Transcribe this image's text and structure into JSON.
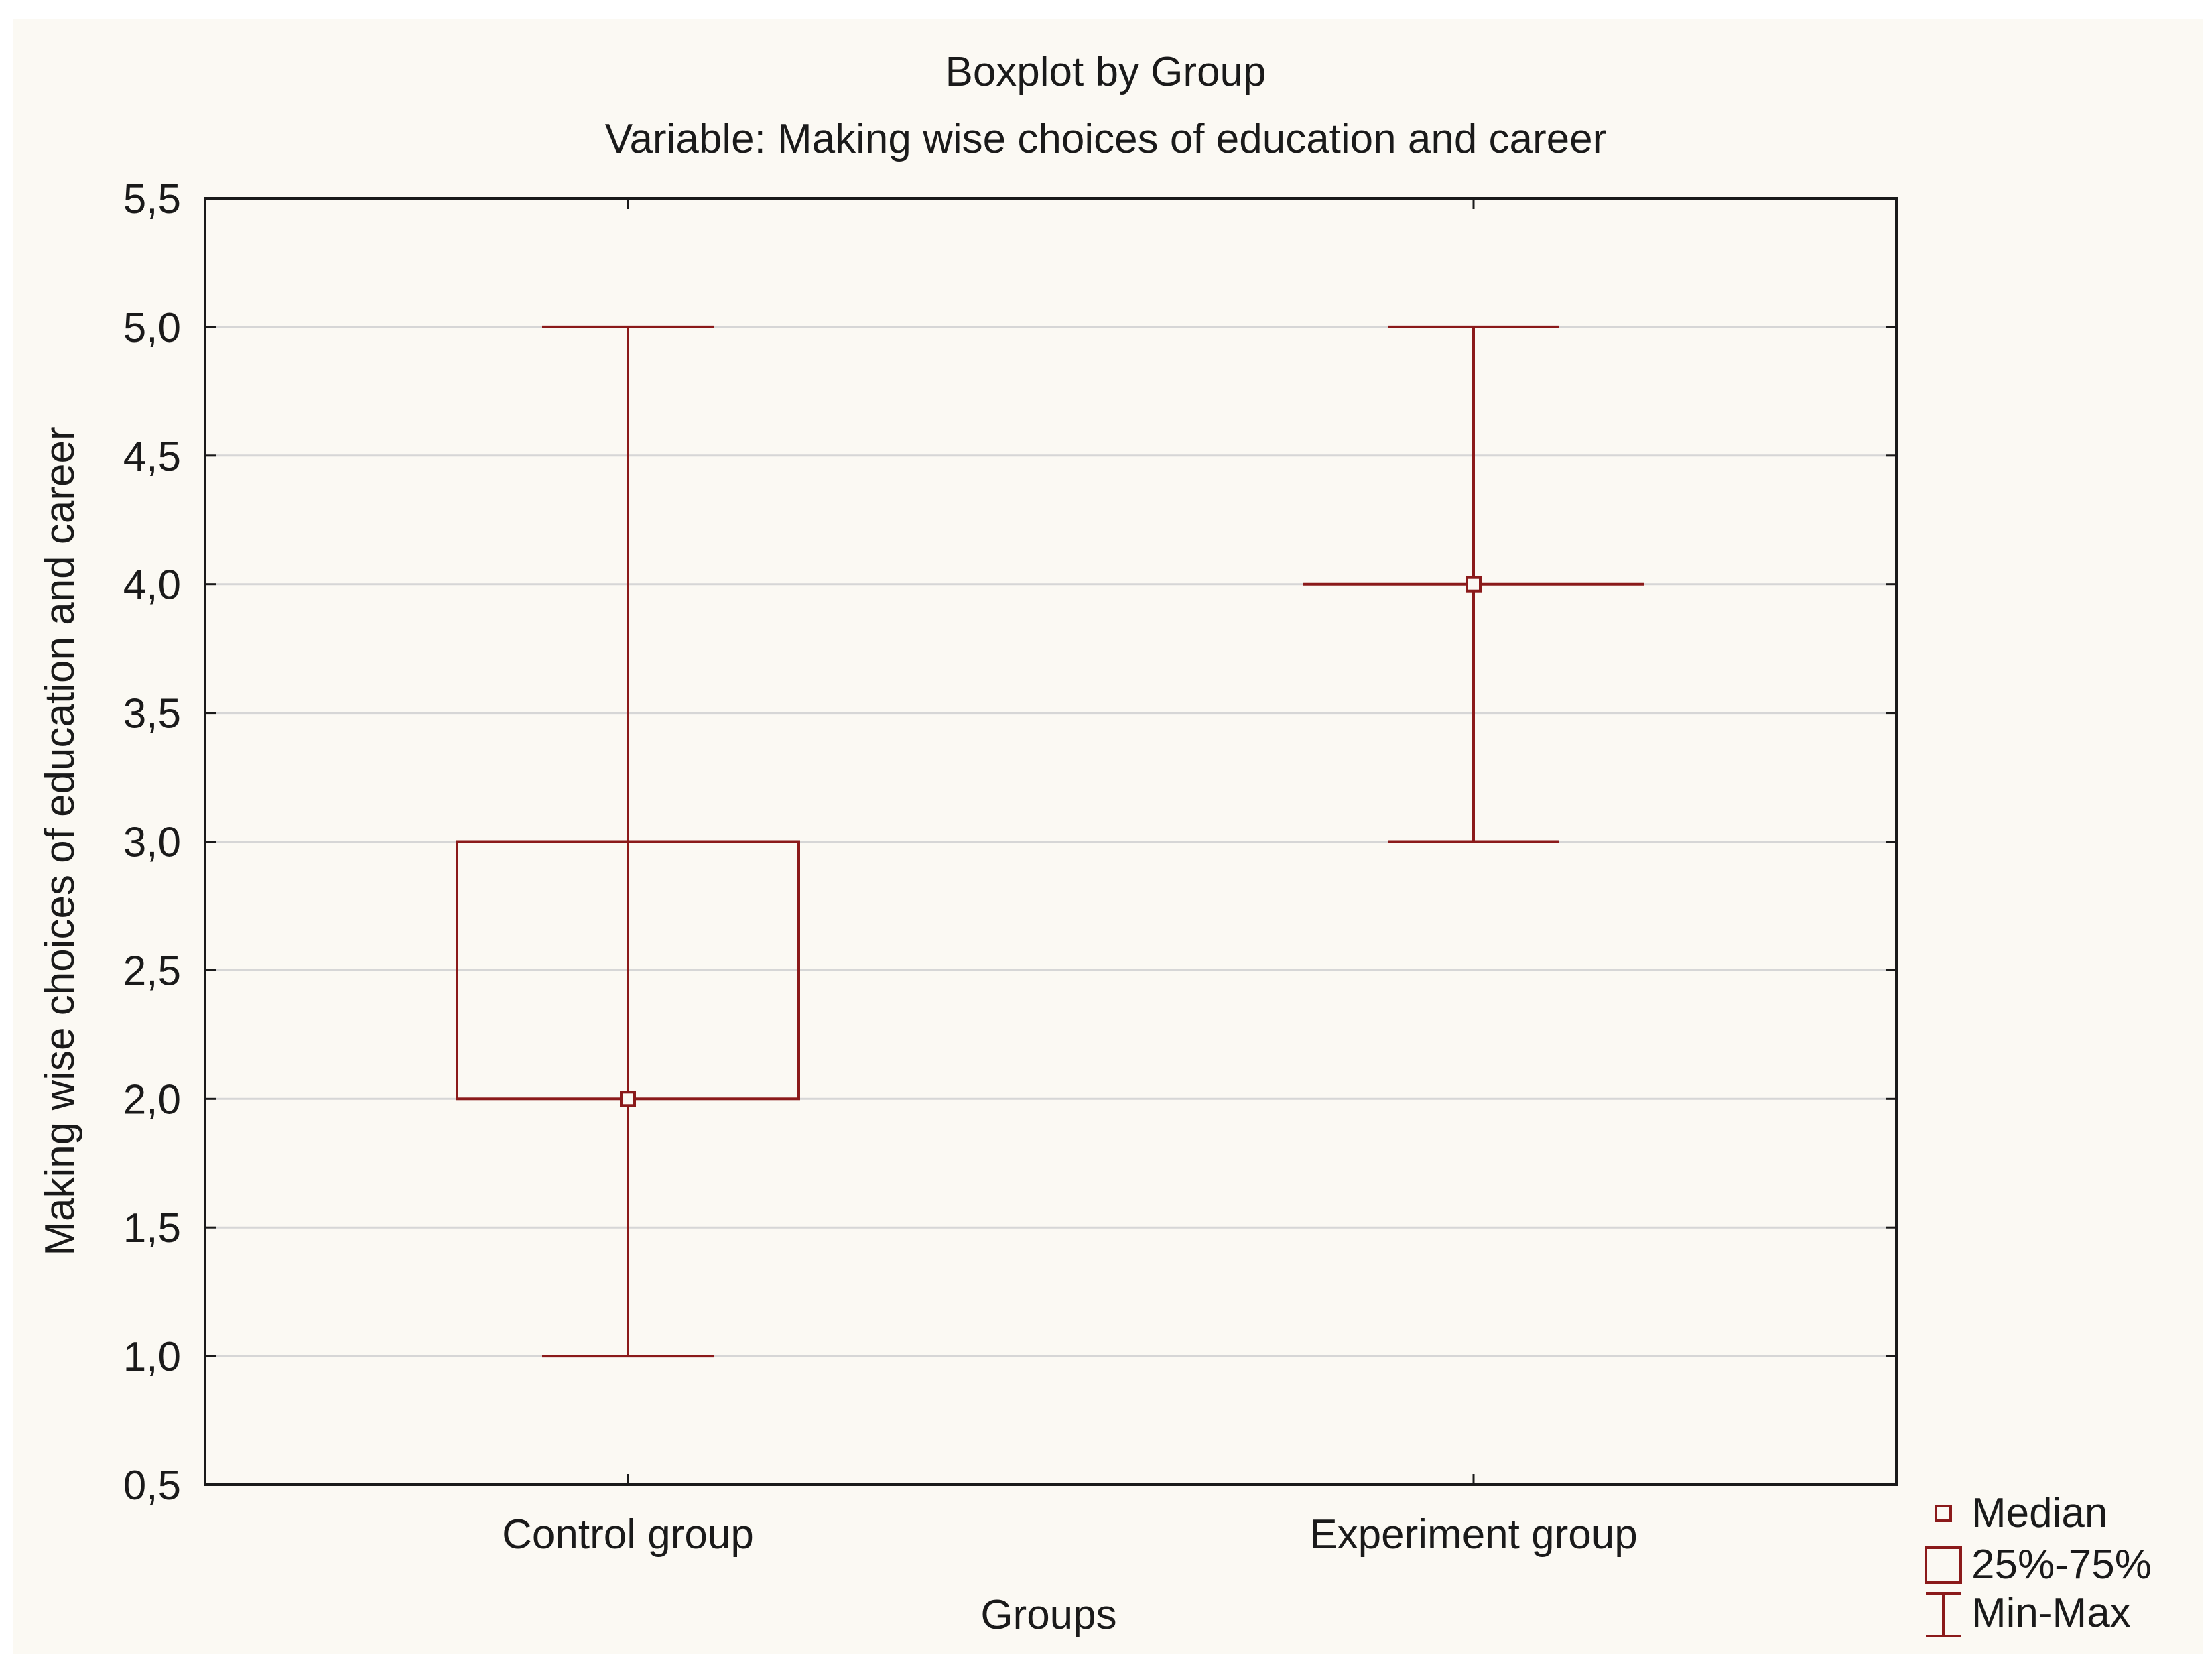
{
  "chart_data": {
    "type": "boxplot",
    "title": "Boxplot by Group",
    "subtitle": "Variable: Making wise choices of education and career",
    "xlabel": "Groups",
    "ylabel": "Making wise choices of education and career",
    "ylim": [
      0.5,
      5.5
    ],
    "yticks": [
      0.5,
      1.0,
      1.5,
      2.0,
      2.5,
      3.0,
      3.5,
      4.0,
      4.5,
      5.0,
      5.5
    ],
    "ytick_labels": [
      "0,5",
      "1,0",
      "1,5",
      "2,0",
      "2,5",
      "3,0",
      "3,5",
      "4,0",
      "4,5",
      "5,0",
      "5,5"
    ],
    "grid": true,
    "legend_position": "bottom-right outside",
    "categories": [
      "Control group",
      "Experiment group"
    ],
    "groups": [
      {
        "name": "Control group",
        "min": 1.0,
        "q1": 2.0,
        "median": 2.0,
        "q3": 3.0,
        "max": 5.0
      },
      {
        "name": "Experiment group",
        "min": 3.0,
        "q1": 4.0,
        "median": 4.0,
        "q3": 4.0,
        "max": 5.0
      }
    ],
    "legend": [
      {
        "symbol": "median",
        "label": "Median"
      },
      {
        "symbol": "box",
        "label": "25%-75%"
      },
      {
        "symbol": "whisker",
        "label": "Min-Max"
      }
    ],
    "series_color": "#8b1a1a",
    "grid_color": "#d6d6d6",
    "axis_color": "#1a1a1a"
  }
}
